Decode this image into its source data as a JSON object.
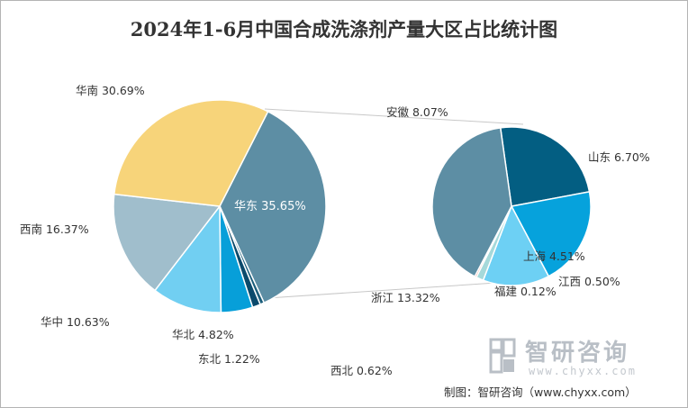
{
  "title": "2024年1-6月中国合成洗涤剂产量大区占比统计图",
  "source": "制图：智研咨询（www.chyxx.com）",
  "watermark": {
    "brand": "智研咨询",
    "url": "www.chyxx.com"
  },
  "chart_data": [
    {
      "type": "pie",
      "title": "2024年1-6月中国合成洗涤剂产量大区占比统计图",
      "slices": [
        {
          "label": "华东",
          "value": 35.65,
          "display": "华东 35.65%",
          "color": "#5d8ea4"
        },
        {
          "label": "西北",
          "value": 0.62,
          "display": "西北 0.62%",
          "color": "#1b5e7b"
        },
        {
          "label": "东北",
          "value": 1.22,
          "display": "东北 1.22%",
          "color": "#0b4a6c"
        },
        {
          "label": "华北",
          "value": 4.82,
          "display": "华北 4.82%",
          "color": "#079fd9"
        },
        {
          "label": "华中",
          "value": 10.63,
          "display": "华中 10.63%",
          "color": "#71cff2"
        },
        {
          "label": "西南",
          "value": 16.37,
          "display": "西南 16.37%",
          "color": "#a0becc"
        },
        {
          "label": "华南",
          "value": 30.69,
          "display": "华南 30.69%",
          "color": "#f7d47a"
        }
      ]
    },
    {
      "type": "pie",
      "title": "",
      "breakdown_of": "华东",
      "slices": [
        {
          "label": "安徽",
          "value": 8.07,
          "display": "安徽 8.07%",
          "color": "#035e82"
        },
        {
          "label": "山东",
          "value": 6.7,
          "display": "山东 6.70%",
          "color": "#06a2dc"
        },
        {
          "label": "上海",
          "value": 4.51,
          "display": "上海 4.51%",
          "color": "#6dd0f4"
        },
        {
          "label": "江西",
          "value": 0.5,
          "display": "江西 0.50%",
          "color": "#a5d9da"
        },
        {
          "label": "福建",
          "value": 0.12,
          "display": "福建 0.12%",
          "color": "#e8836f"
        },
        {
          "label": "浙江",
          "value": 13.32,
          "display": "浙江 13.32%",
          "color": "#5d8ea4"
        }
      ]
    }
  ]
}
